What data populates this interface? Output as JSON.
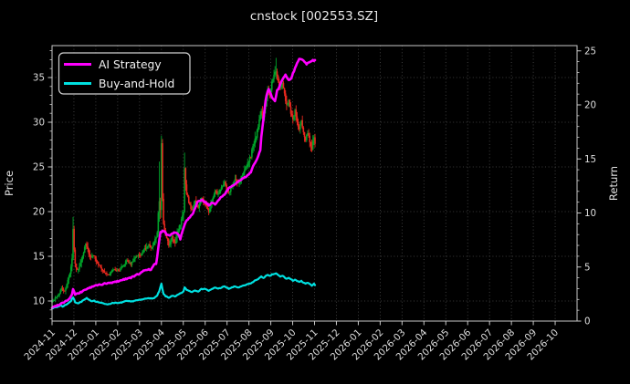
{
  "title": "cnstock [002553.SZ]",
  "legend": {
    "ai": "AI Strategy",
    "bh": "Buy-and-Hold"
  },
  "axes": {
    "left_label": "Price",
    "right_label": "Return",
    "left_ticks": [
      10,
      15,
      20,
      25,
      30,
      35
    ],
    "right_ticks": [
      0,
      5,
      10,
      15,
      20,
      25
    ],
    "x_tick_labels": [
      "2024-11",
      "2024-12",
      "2025-01",
      "2025-02",
      "2025-03",
      "2025-04",
      "2025-05",
      "2025-06",
      "2025-07",
      "2025-08",
      "2025-09",
      "2025-10",
      "2025-11",
      "2025-12",
      "2026-01",
      "2026-02",
      "2026-03",
      "2026-04",
      "2026-05",
      "2026-06",
      "2026-07",
      "2026-08",
      "2026-09",
      "2026-10"
    ],
    "left_range": [
      7.76,
      38.57
    ],
    "right_range": [
      0,
      25.5
    ]
  },
  "colors": {
    "background": "#000000",
    "text": "#e8e8e8",
    "grid": "#9a9a9a",
    "spine": "#c8c8c8",
    "up": "#00a32a",
    "down": "#e8281e",
    "ai": "#ff00ff",
    "bh": "#00e0e0"
  },
  "chart_data": {
    "type": "candlestick_with_lines",
    "n_days": 251,
    "data_start": "2024-11",
    "data_end": "2025-11",
    "grid": "dotted",
    "legend_position": "upper-left",
    "series": [
      {
        "name": "AI Strategy",
        "axis": "Return",
        "color": "#ff00ff"
      },
      {
        "name": "Buy-and-Hold",
        "axis": "Return",
        "color": "#00e0e0"
      },
      {
        "name": "Price candles",
        "axis": "Price"
      }
    ],
    "close_waypoints": [
      [
        0,
        9.9,
        0.3
      ],
      [
        3,
        10.3,
        0.35
      ],
      [
        6,
        10.7,
        0.4
      ],
      [
        9,
        11.3,
        0.5
      ],
      [
        12,
        11.1,
        0.5
      ],
      [
        15,
        12.3,
        0.6
      ],
      [
        17,
        13.1,
        0.7
      ],
      [
        19,
        14.8,
        0.9
      ],
      [
        20,
        18.3,
        1.1
      ],
      [
        21,
        15.8,
        1.0
      ],
      [
        22,
        14.0,
        0.8
      ],
      [
        24,
        13.4,
        0.7
      ],
      [
        27,
        14.3,
        0.8
      ],
      [
        30,
        15.4,
        0.8
      ],
      [
        32,
        16.4,
        0.6
      ],
      [
        34,
        15.7,
        0.7
      ],
      [
        37,
        14.8,
        0.6
      ],
      [
        40,
        15.2,
        0.6
      ],
      [
        42,
        14.5,
        0.5
      ],
      [
        46,
        13.7,
        0.5
      ],
      [
        50,
        13.1,
        0.4
      ],
      [
        54,
        12.9,
        0.4
      ],
      [
        58,
        13.5,
        0.4
      ],
      [
        63,
        13.3,
        0.4
      ],
      [
        67,
        13.9,
        0.5
      ],
      [
        71,
        14.5,
        0.5
      ],
      [
        75,
        14.1,
        0.5
      ],
      [
        79,
        14.9,
        0.5
      ],
      [
        84,
        15.1,
        0.5
      ],
      [
        88,
        15.9,
        0.6
      ],
      [
        92,
        16.4,
        0.6
      ],
      [
        95,
        15.9,
        0.5
      ],
      [
        98,
        16.9,
        0.7
      ],
      [
        100,
        17.6,
        0.9
      ],
      [
        101,
        19.6,
        1.6
      ],
      [
        102,
        21.5,
        2.2
      ],
      [
        103,
        20.0,
        1.5
      ],
      [
        104,
        27.4,
        1.2
      ],
      [
        105,
        21.2,
        1.5
      ],
      [
        106,
        18.6,
        1.2
      ],
      [
        108,
        17.3,
        0.9
      ],
      [
        111,
        16.2,
        0.7
      ],
      [
        114,
        17.1,
        0.8
      ],
      [
        117,
        16.5,
        0.7
      ],
      [
        120,
        17.9,
        0.8
      ],
      [
        123,
        19.0,
        0.8
      ],
      [
        125,
        20.0,
        1.0
      ],
      [
        126,
        24.8,
        1.8
      ],
      [
        127,
        23.0,
        1.2
      ],
      [
        128,
        22.0,
        1.0
      ],
      [
        130,
        21.0,
        0.8
      ],
      [
        133,
        20.2,
        0.7
      ],
      [
        136,
        21.1,
        0.7
      ],
      [
        139,
        20.5,
        0.6
      ],
      [
        142,
        21.4,
        0.6
      ],
      [
        145,
        21.1,
        0.6
      ],
      [
        147,
        20.7,
        0.6
      ],
      [
        149,
        20.0,
        0.7
      ],
      [
        152,
        21.3,
        0.7
      ],
      [
        155,
        22.4,
        0.7
      ],
      [
        158,
        21.9,
        0.6
      ],
      [
        161,
        22.7,
        0.6
      ],
      [
        164,
        23.3,
        0.7
      ],
      [
        166,
        22.5,
        0.6
      ],
      [
        168,
        22.1,
        0.6
      ],
      [
        171,
        22.9,
        0.6
      ],
      [
        174,
        23.6,
        0.7
      ],
      [
        177,
        23.1,
        0.6
      ],
      [
        180,
        23.9,
        0.7
      ],
      [
        183,
        24.6,
        0.7
      ],
      [
        186,
        25.3,
        0.8
      ],
      [
        189,
        26.2,
        0.9
      ],
      [
        191,
        27.3,
        1.0
      ],
      [
        193,
        28.0,
        1.1
      ],
      [
        196,
        29.5,
        1.1
      ],
      [
        199,
        31.5,
        1.0
      ],
      [
        201,
        30.5,
        0.9
      ],
      [
        203,
        32.0,
        0.9
      ],
      [
        205,
        33.5,
        0.9
      ],
      [
        207,
        33.0,
        0.8
      ],
      [
        209,
        34.5,
        0.8
      ],
      [
        211,
        35.3,
        0.9
      ],
      [
        213,
        35.9,
        1.1
      ],
      [
        215,
        34.6,
        0.9
      ],
      [
        217,
        33.7,
        0.8
      ],
      [
        219,
        34.5,
        0.8
      ],
      [
        221,
        33.1,
        0.9
      ],
      [
        223,
        31.9,
        0.9
      ],
      [
        225,
        32.6,
        0.8
      ],
      [
        227,
        31.1,
        0.8
      ],
      [
        229,
        30.3,
        0.8
      ],
      [
        231,
        31.3,
        0.8
      ],
      [
        233,
        30.1,
        0.8
      ],
      [
        235,
        29.3,
        0.8
      ],
      [
        237,
        30.1,
        0.7
      ],
      [
        239,
        28.9,
        0.8
      ],
      [
        241,
        28.1,
        0.9
      ],
      [
        243,
        28.9,
        0.8
      ],
      [
        245,
        27.9,
        0.8
      ],
      [
        247,
        27.1,
        1.0
      ],
      [
        249,
        28.4,
        0.9
      ],
      [
        250,
        27.7,
        0.8
      ]
    ],
    "spike_highs": {
      "20": 19.4,
      "102": 25.6,
      "104": 28.5,
      "126": 26.6,
      "213": 37.2
    },
    "ai_return_waypoints": [
      [
        0,
        1.25
      ],
      [
        6,
        1.5
      ],
      [
        10,
        1.7
      ],
      [
        14,
        1.9
      ],
      [
        17,
        2.1
      ],
      [
        19,
        2.5
      ],
      [
        20,
        2.95
      ],
      [
        21,
        2.7
      ],
      [
        22,
        2.45
      ],
      [
        25,
        2.55
      ],
      [
        28,
        2.7
      ],
      [
        31,
        2.9
      ],
      [
        35,
        3.05
      ],
      [
        42,
        3.3
      ],
      [
        50,
        3.45
      ],
      [
        57,
        3.55
      ],
      [
        63,
        3.7
      ],
      [
        70,
        3.9
      ],
      [
        76,
        4.05
      ],
      [
        81,
        4.3
      ],
      [
        84,
        4.45
      ],
      [
        88,
        4.7
      ],
      [
        91,
        4.8
      ],
      [
        94,
        4.7
      ],
      [
        97,
        5.2
      ],
      [
        99,
        5.3
      ],
      [
        101,
        6.75
      ],
      [
        102,
        7.5
      ],
      [
        103,
        8.2
      ],
      [
        105,
        8.3
      ],
      [
        107,
        8.35
      ],
      [
        109,
        8.0
      ],
      [
        112,
        7.95
      ],
      [
        116,
        8.2
      ],
      [
        119,
        8.1
      ],
      [
        121,
        7.9
      ],
      [
        122,
        7.6
      ],
      [
        124,
        8.3
      ],
      [
        126,
        8.9
      ],
      [
        128,
        9.3
      ],
      [
        130,
        9.5
      ],
      [
        134,
        9.9
      ],
      [
        138,
        11.0
      ],
      [
        142,
        11.2
      ],
      [
        146,
        11.0
      ],
      [
        149,
        10.7
      ],
      [
        152,
        10.9
      ],
      [
        155,
        10.8
      ],
      [
        158,
        11.2
      ],
      [
        161,
        11.5
      ],
      [
        164,
        11.7
      ],
      [
        167,
        12.2
      ],
      [
        172,
        12.6
      ],
      [
        176,
        12.8
      ],
      [
        180,
        13.1
      ],
      [
        185,
        13.4
      ],
      [
        189,
        13.8
      ],
      [
        192,
        14.5
      ],
      [
        195,
        15.0
      ],
      [
        198,
        15.8
      ],
      [
        199,
        17.0
      ],
      [
        201,
        18.7
      ],
      [
        203,
        20.4
      ],
      [
        205,
        21.3
      ],
      [
        206,
        21.5
      ],
      [
        209,
        20.7
      ],
      [
        212,
        20.3
      ],
      [
        214,
        21.3
      ],
      [
        217,
        21.9
      ],
      [
        220,
        22.5
      ],
      [
        222,
        22.8
      ],
      [
        225,
        22.3
      ],
      [
        227,
        22.4
      ],
      [
        231,
        23.4
      ],
      [
        235,
        24.3
      ],
      [
        239,
        24.1
      ],
      [
        242,
        23.8
      ],
      [
        245,
        24.0
      ],
      [
        248,
        24.15
      ],
      [
        250,
        24.1
      ]
    ],
    "bh_return_waypoints": [
      [
        0,
        1.2
      ],
      [
        5,
        1.3
      ],
      [
        8,
        1.45
      ],
      [
        10,
        1.35
      ],
      [
        13,
        1.5
      ],
      [
        16,
        1.7
      ],
      [
        18,
        1.85
      ],
      [
        20,
        2.2
      ],
      [
        22,
        1.75
      ],
      [
        25,
        1.65
      ],
      [
        28,
        1.8
      ],
      [
        31,
        2.0
      ],
      [
        33,
        2.1
      ],
      [
        35,
        1.95
      ],
      [
        38,
        1.85
      ],
      [
        40,
        1.9
      ],
      [
        42,
        1.8
      ],
      [
        46,
        1.7
      ],
      [
        50,
        1.6
      ],
      [
        54,
        1.55
      ],
      [
        58,
        1.7
      ],
      [
        63,
        1.65
      ],
      [
        67,
        1.75
      ],
      [
        71,
        1.85
      ],
      [
        75,
        1.8
      ],
      [
        79,
        1.9
      ],
      [
        84,
        1.95
      ],
      [
        88,
        2.05
      ],
      [
        92,
        2.15
      ],
      [
        95,
        2.05
      ],
      [
        98,
        2.2
      ],
      [
        100,
        2.35
      ],
      [
        102,
        2.8
      ],
      [
        104,
        3.45
      ],
      [
        105,
        2.9
      ],
      [
        106,
        2.5
      ],
      [
        108,
        2.3
      ],
      [
        111,
        2.15
      ],
      [
        114,
        2.35
      ],
      [
        117,
        2.25
      ],
      [
        120,
        2.45
      ],
      [
        123,
        2.6
      ],
      [
        125,
        2.75
      ],
      [
        126,
        3.1
      ],
      [
        128,
        2.9
      ],
      [
        130,
        2.8
      ],
      [
        133,
        2.7
      ],
      [
        136,
        2.85
      ],
      [
        139,
        2.75
      ],
      [
        142,
        2.95
      ],
      [
        145,
        3.0
      ],
      [
        147,
        2.9
      ],
      [
        149,
        2.8
      ],
      [
        152,
        2.95
      ],
      [
        155,
        3.1
      ],
      [
        158,
        3.0
      ],
      [
        161,
        3.1
      ],
      [
        164,
        3.2
      ],
      [
        166,
        3.1
      ],
      [
        168,
        3.0
      ],
      [
        171,
        3.1
      ],
      [
        174,
        3.2
      ],
      [
        177,
        3.1
      ],
      [
        180,
        3.2
      ],
      [
        183,
        3.3
      ],
      [
        186,
        3.4
      ],
      [
        189,
        3.5
      ],
      [
        191,
        3.6
      ],
      [
        193,
        3.75
      ],
      [
        196,
        3.9
      ],
      [
        199,
        4.1
      ],
      [
        201,
        4.0
      ],
      [
        203,
        4.15
      ],
      [
        205,
        4.25
      ],
      [
        207,
        4.15
      ],
      [
        209,
        4.3
      ],
      [
        211,
        4.35
      ],
      [
        213,
        4.4
      ],
      [
        215,
        4.25
      ],
      [
        217,
        4.1
      ],
      [
        219,
        4.2
      ],
      [
        221,
        4.05
      ],
      [
        223,
        3.9
      ],
      [
        225,
        4.0
      ],
      [
        227,
        3.85
      ],
      [
        229,
        3.75
      ],
      [
        231,
        3.85
      ],
      [
        233,
        3.7
      ],
      [
        235,
        3.6
      ],
      [
        237,
        3.7
      ],
      [
        239,
        3.55
      ],
      [
        241,
        3.45
      ],
      [
        243,
        3.55
      ],
      [
        245,
        3.4
      ],
      [
        247,
        3.3
      ],
      [
        249,
        3.45
      ],
      [
        250,
        3.35
      ]
    ]
  }
}
